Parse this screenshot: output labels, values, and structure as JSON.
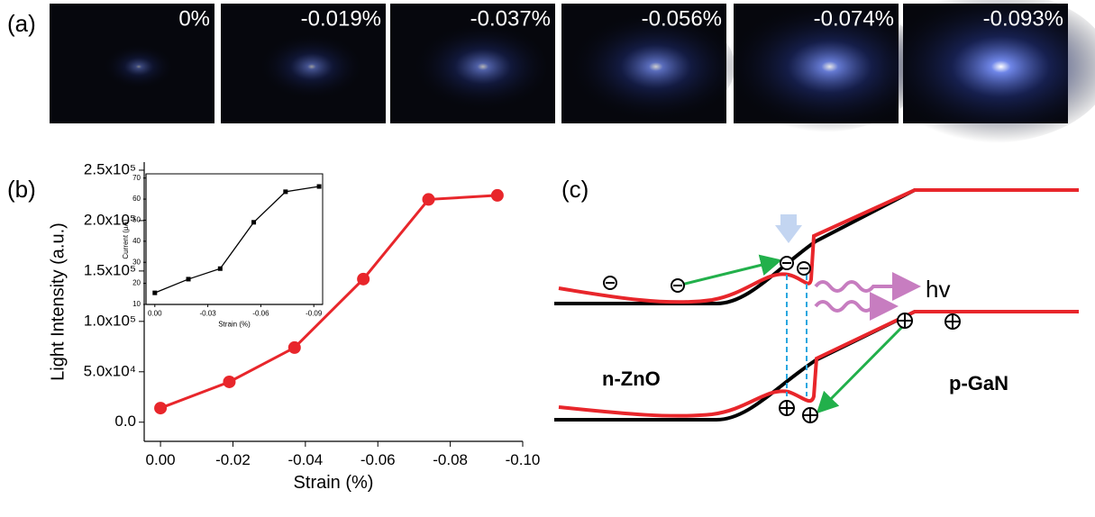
{
  "panel_a": {
    "label": "(a)",
    "captions": [
      "0%",
      "-0.019%",
      "-0.037%",
      "-0.056%",
      "-0.074%",
      "-0.093%"
    ]
  },
  "panel_b": {
    "label": "(b)"
  },
  "panel_c": {
    "label": "(c)",
    "left_region": "n-ZnO",
    "right_region": "p-GaN",
    "photon": "hv"
  },
  "chart_data": [
    {
      "type": "line",
      "x_label": "Strain (%)",
      "y_label": "Light Intensity (a.u.)",
      "color": "#e8262b",
      "marker": "circle",
      "x": [
        0,
        -0.019,
        -0.037,
        -0.056,
        -0.074,
        -0.093
      ],
      "values": [
        14000,
        40000,
        74000,
        142000,
        221000,
        225000
      ],
      "xlim": [
        0.0045,
        -0.1
      ],
      "xticks": [
        {
          "value": 0,
          "label": "0.00"
        },
        {
          "value": -0.02,
          "label": "-0.02"
        },
        {
          "value": -0.04,
          "label": "-0.04"
        },
        {
          "value": -0.06,
          "label": "-0.06"
        },
        {
          "value": -0.08,
          "label": "-0.08"
        },
        {
          "value": -0.1,
          "label": "-0.10"
        }
      ],
      "ylim": [
        -19000,
        258000
      ],
      "yticks": [
        {
          "value": 0,
          "label": "0.0"
        },
        {
          "value": 50000,
          "label": "5.0x10⁴"
        },
        {
          "value": 100000,
          "label": "1.0x10⁵"
        },
        {
          "value": 150000,
          "label": "1.5x10⁵"
        },
        {
          "value": 200000,
          "label": "2.0x10⁵"
        },
        {
          "value": 250000,
          "label": "2.5x10⁵"
        }
      ]
    },
    {
      "type": "line",
      "x_label": "Strain (%)",
      "y_label": "Current (μA)",
      "color": "#000000",
      "marker": "square",
      "x": [
        0,
        -0.019,
        -0.037,
        -0.056,
        -0.074,
        -0.093
      ],
      "values": [
        15.5,
        22,
        27,
        49,
        63.5,
        66
      ],
      "xlim": [
        0.005,
        -0.095
      ],
      "xticks": [
        {
          "value": 0,
          "label": "0.00"
        },
        {
          "value": -0.03,
          "label": "-0.03"
        },
        {
          "value": -0.06,
          "label": "-0.06"
        },
        {
          "value": -0.09,
          "label": "-0.09"
        }
      ],
      "ylim": [
        10,
        72
      ],
      "yticks": [
        10,
        20,
        30,
        40,
        50,
        60,
        70
      ]
    }
  ]
}
